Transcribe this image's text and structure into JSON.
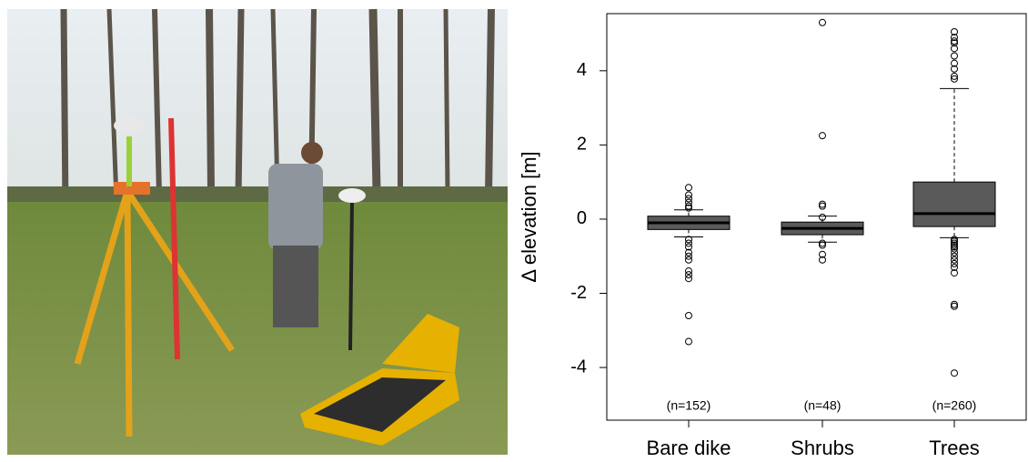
{
  "chart_data": {
    "type": "box",
    "ylabel": "Δ elevation [m]",
    "categories": [
      "Bare dike",
      "Shrubs",
      "Trees"
    ],
    "annotations": [
      "(n=152)",
      "(n=48)",
      "(n=260)"
    ],
    "color": "#5a5a5a",
    "ylim": [
      -5.42,
      5.54
    ],
    "yticks": [
      -4,
      -2,
      0,
      2,
      4
    ],
    "boxes": [
      {
        "whisker_low": -0.48,
        "q1": -0.28,
        "median": -0.1,
        "q3": 0.08,
        "whisker_high": 0.25,
        "outliers": [
          0.85,
          0.65,
          0.55,
          0.45,
          0.35,
          0.3,
          -0.55,
          -0.65,
          -0.75,
          -0.9,
          -1.0,
          -1.1,
          -1.4,
          -1.5,
          -1.6,
          -2.6,
          -3.3
        ]
      },
      {
        "whisker_low": -0.62,
        "q1": -0.42,
        "median": -0.25,
        "q3": -0.08,
        "whisker_high": 0.08,
        "outliers": [
          5.3,
          2.25,
          0.4,
          0.35,
          0.05,
          -0.65,
          -0.7,
          -0.95,
          -1.1
        ]
      },
      {
        "whisker_low": -0.5,
        "q1": -0.2,
        "median": 0.15,
        "q3": 1.0,
        "whisker_high": 3.52,
        "outliers": [
          5.05,
          4.9,
          4.8,
          4.75,
          4.6,
          4.4,
          4.2,
          4.05,
          3.85,
          3.78,
          -0.55,
          -0.6,
          -0.65,
          -0.7,
          -0.75,
          -0.8,
          -0.9,
          -1.0,
          -1.1,
          -1.2,
          -1.3,
          -1.45,
          -2.3,
          -2.35,
          -4.15
        ]
      }
    ]
  }
}
